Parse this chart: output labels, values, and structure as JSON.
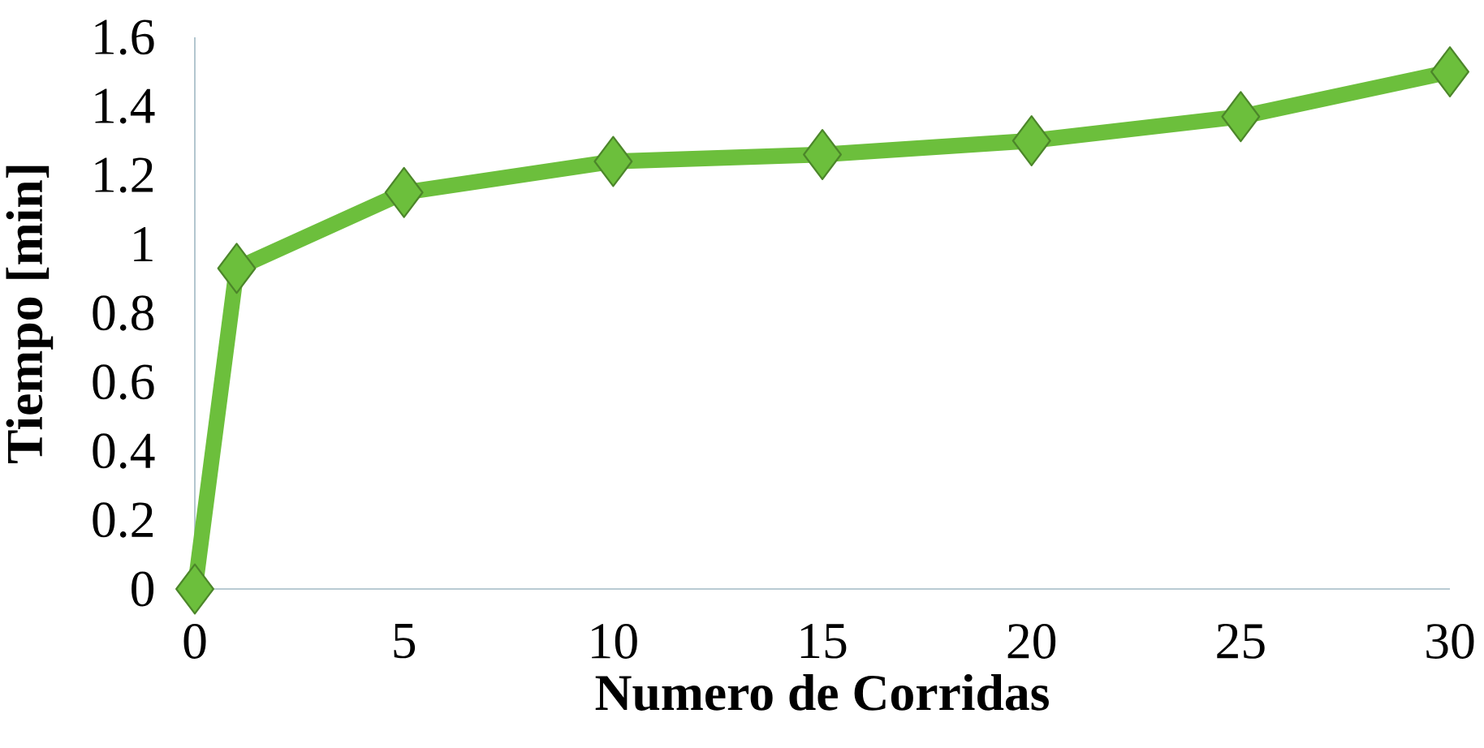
{
  "chart_data": {
    "type": "line",
    "xlabel": "Numero de Corridas",
    "ylabel": "Tiempo [min]",
    "x": [
      0,
      1,
      5,
      10,
      15,
      20,
      25,
      30
    ],
    "series": [
      {
        "color": "#6cbf3c",
        "values": [
          0,
          0.93,
          1.15,
          1.24,
          1.26,
          1.3,
          1.37,
          1.5
        ]
      }
    ],
    "xlim": [
      0,
      30
    ],
    "ylim": [
      0,
      1.6
    ],
    "xticks": [
      0,
      5,
      10,
      15,
      20,
      25,
      30
    ],
    "yticks": [
      0,
      0.2,
      0.4,
      0.6,
      0.8,
      1,
      1.2,
      1.4,
      1.6
    ],
    "marker": "diamond",
    "line_style": "solid",
    "grid": false
  }
}
